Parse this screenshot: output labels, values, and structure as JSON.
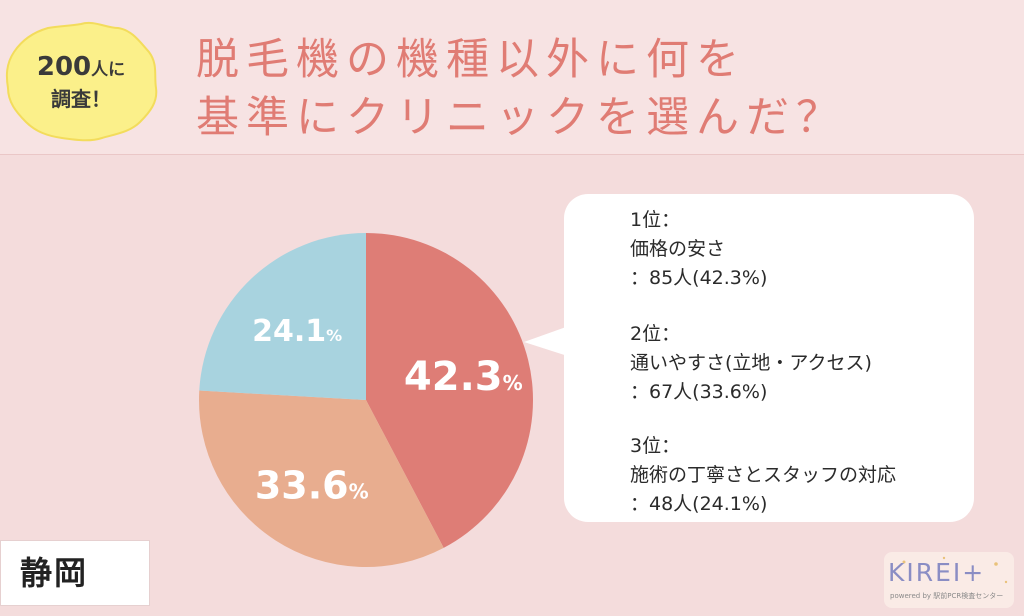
{
  "badge": {
    "line1_number": "200",
    "line1_suffix": "人に",
    "line2": "調査！"
  },
  "title": {
    "line1": "脱毛機の機種以外に何を",
    "line2": "基準にクリニックを選んだ？"
  },
  "chart_data": {
    "type": "pie",
    "slices": [
      {
        "label": "価格の安さ",
        "value": 42.3,
        "display": "42.3",
        "color": "#de7d76"
      },
      {
        "label": "通いやすさ(立地・アクセス)",
        "value": 33.6,
        "display": "33.6",
        "color": "#e8ad8f"
      },
      {
        "label": "施術の丁寧さとスタッフの対応",
        "value": 24.1,
        "display": "24.1",
        "color": "#a8d3df"
      }
    ],
    "unit": "%"
  },
  "ranking": [
    {
      "rank": "1位：",
      "item": "価格の安さ",
      "detail": "：85人(42.3%)"
    },
    {
      "rank": "2位：",
      "item": "通いやすさ(立地・アクセス)",
      "detail": "：67人(33.6%)"
    },
    {
      "rank": "3位：",
      "item": "施術の丁寧さとスタッフの対応",
      "detail": "：48人(24.1%)"
    }
  ],
  "region": "静岡",
  "logo": {
    "name": "KIREI+",
    "subtitle": "powered by 駅前PCR検査センター"
  }
}
